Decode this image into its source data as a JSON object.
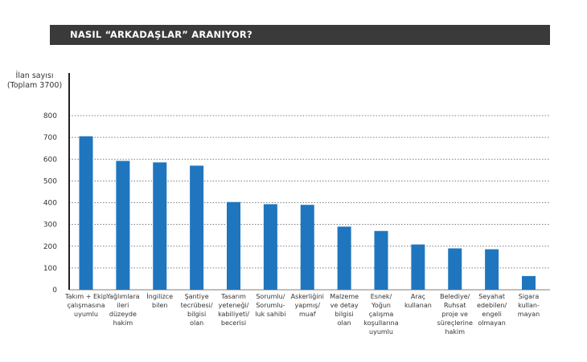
{
  "header": {
    "title": "NASIL “ARKADAŞLAR” ARANIYOR?"
  },
  "y_axis_caption": [
    "İlan sayısı",
    "(Toplam 3700)"
  ],
  "colors": {
    "bar": "#1f76bf",
    "title_bg": "#3a3a3a",
    "grid": "#555555"
  },
  "chart_data": {
    "type": "bar",
    "title": "NASIL “ARKADAŞLAR” ARANIYOR?",
    "ylabel": "İlan sayısı (Toplam 3700)",
    "ylim": [
      0,
      800
    ],
    "yticks": [
      0,
      100,
      200,
      300,
      400,
      500,
      600,
      700,
      800
    ],
    "grid": "horizontal dotted",
    "categories": [
      [
        "Takım + Ekip",
        "çalışmasına",
        "uyumlu"
      ],
      [
        "Yağlımlara",
        "ileri",
        "düzeyde",
        "hakim"
      ],
      [
        "İngilizce",
        "bilen"
      ],
      [
        "Şantiye",
        "tecrübesi/",
        "bilgisi",
        "olan"
      ],
      [
        "Tasarım",
        "yeteneği/",
        "kabiliyeti/",
        "becerisi"
      ],
      [
        "Sorumlu/",
        "Sorumlu-",
        "luk sahibi"
      ],
      [
        "Askerliğini",
        "yapmış/",
        "muaf"
      ],
      [
        "Malzeme",
        "ve detay",
        "bilgisi",
        "olan"
      ],
      [
        "Esnek/",
        "Yoğun",
        "çalışma",
        "koşullarına",
        "uyumlu"
      ],
      [
        "Araç",
        "kullanan"
      ],
      [
        "Belediye/",
        "Ruhsat",
        "proje ve",
        "süreçlerine",
        "hakim"
      ],
      [
        "Seyahat",
        "edebilen/",
        "engeli",
        "olmayan"
      ],
      [
        "Sigara",
        "kullan-",
        "mayan"
      ]
    ],
    "values": [
      705,
      592,
      585,
      570,
      403,
      393,
      390,
      290,
      270,
      208,
      190,
      186,
      63
    ]
  }
}
